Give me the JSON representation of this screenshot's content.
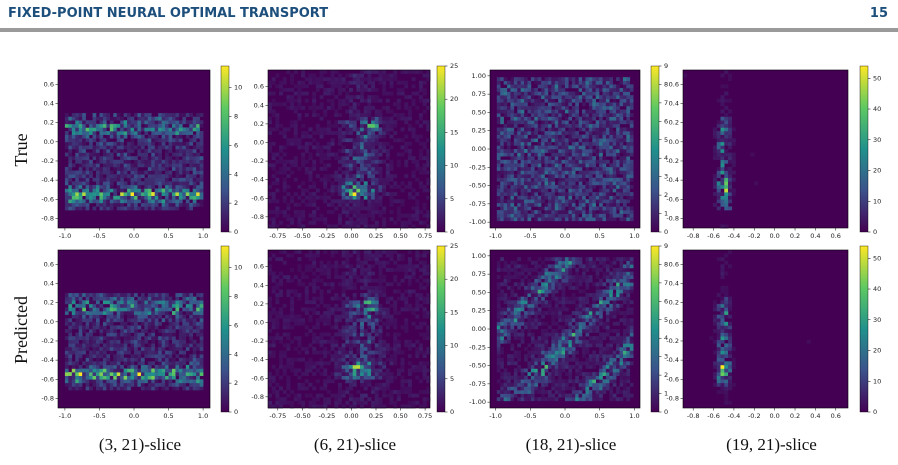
{
  "header": {
    "title": "FIXED-POINT NEURAL OPTIMAL TRANSPORT",
    "page": "15"
  },
  "rows": [
    "True",
    "Predicted"
  ],
  "columns": [
    {
      "caption": "(3, 21)-slice",
      "xlim": [
        -1.1,
        1.1
      ],
      "ylim": [
        -0.9,
        0.75
      ],
      "cbar_lim": [
        0,
        11.5
      ],
      "xticks": [
        {
          "value": -1,
          "label": "-1.0"
        },
        -0.5,
        {
          "value": 0,
          "label": "0.0"
        },
        0.5,
        {
          "value": 1,
          "label": "1.0"
        }
      ],
      "yticks": [
        0.6,
        0.4,
        0.2,
        {
          "value": 0,
          "label": "0.0"
        },
        -0.2,
        -0.4,
        -0.6,
        -0.8
      ],
      "cbar_ticks": [
        0,
        2,
        4,
        6,
        8,
        10
      ]
    },
    {
      "caption": "(6, 21)-slice",
      "xlim": [
        -0.85,
        0.8
      ],
      "ylim": [
        -0.92,
        0.78
      ],
      "cbar_lim": [
        0,
        25
      ],
      "xticks": [
        -0.75,
        {
          "value": -0.5,
          "label": "-0.50"
        },
        -0.25,
        {
          "value": 0,
          "label": "0.00"
        },
        0.25,
        {
          "value": 0.5,
          "label": "0.50"
        },
        0.75
      ],
      "yticks": [
        0.6,
        0.4,
        0.2,
        {
          "value": 0,
          "label": "0.0"
        },
        -0.2,
        -0.4,
        -0.6,
        -0.8
      ],
      "cbar_ticks": [
        0,
        5,
        10,
        15,
        20,
        25
      ]
    },
    {
      "caption": "(18, 21)-slice",
      "xlim": [
        -1.08,
        1.08
      ],
      "ylim": [
        -1.08,
        1.08
      ],
      "cbar_lim": [
        0,
        9
      ],
      "xticks": [
        {
          "value": -1,
          "label": "-1.0"
        },
        -0.5,
        {
          "value": 0,
          "label": "0.0"
        },
        0.5,
        {
          "value": 1,
          "label": "1.0"
        }
      ],
      "yticks": [
        {
          "value": 1,
          "label": "1.00"
        },
        0.75,
        {
          "value": 0.5,
          "label": "0.50"
        },
        0.25,
        {
          "value": 0,
          "label": "0.00"
        },
        -0.25,
        {
          "value": -0.5,
          "label": "-0.50"
        },
        -0.75,
        {
          "value": -1,
          "label": "-1.00"
        }
      ],
      "cbar_ticks": [
        0,
        1,
        2,
        3,
        4,
        5,
        6,
        7,
        8,
        9
      ]
    },
    {
      "caption": "(19, 21)-slice",
      "xlim": [
        -0.9,
        0.72
      ],
      "ylim": [
        -0.9,
        0.75
      ],
      "cbar_lim": [
        0,
        54
      ],
      "xticks": [
        -0.8,
        -0.6,
        -0.4,
        -0.2,
        {
          "value": 0,
          "label": "0.0"
        },
        0.2,
        0.4,
        0.6
      ],
      "yticks": [
        0.6,
        0.4,
        0.2,
        {
          "value": 0,
          "label": "0.0"
        },
        -0.2,
        -0.4,
        -0.6,
        -0.8
      ],
      "cbar_ticks": [
        0,
        10,
        20,
        30,
        40,
        50
      ]
    }
  ]
}
